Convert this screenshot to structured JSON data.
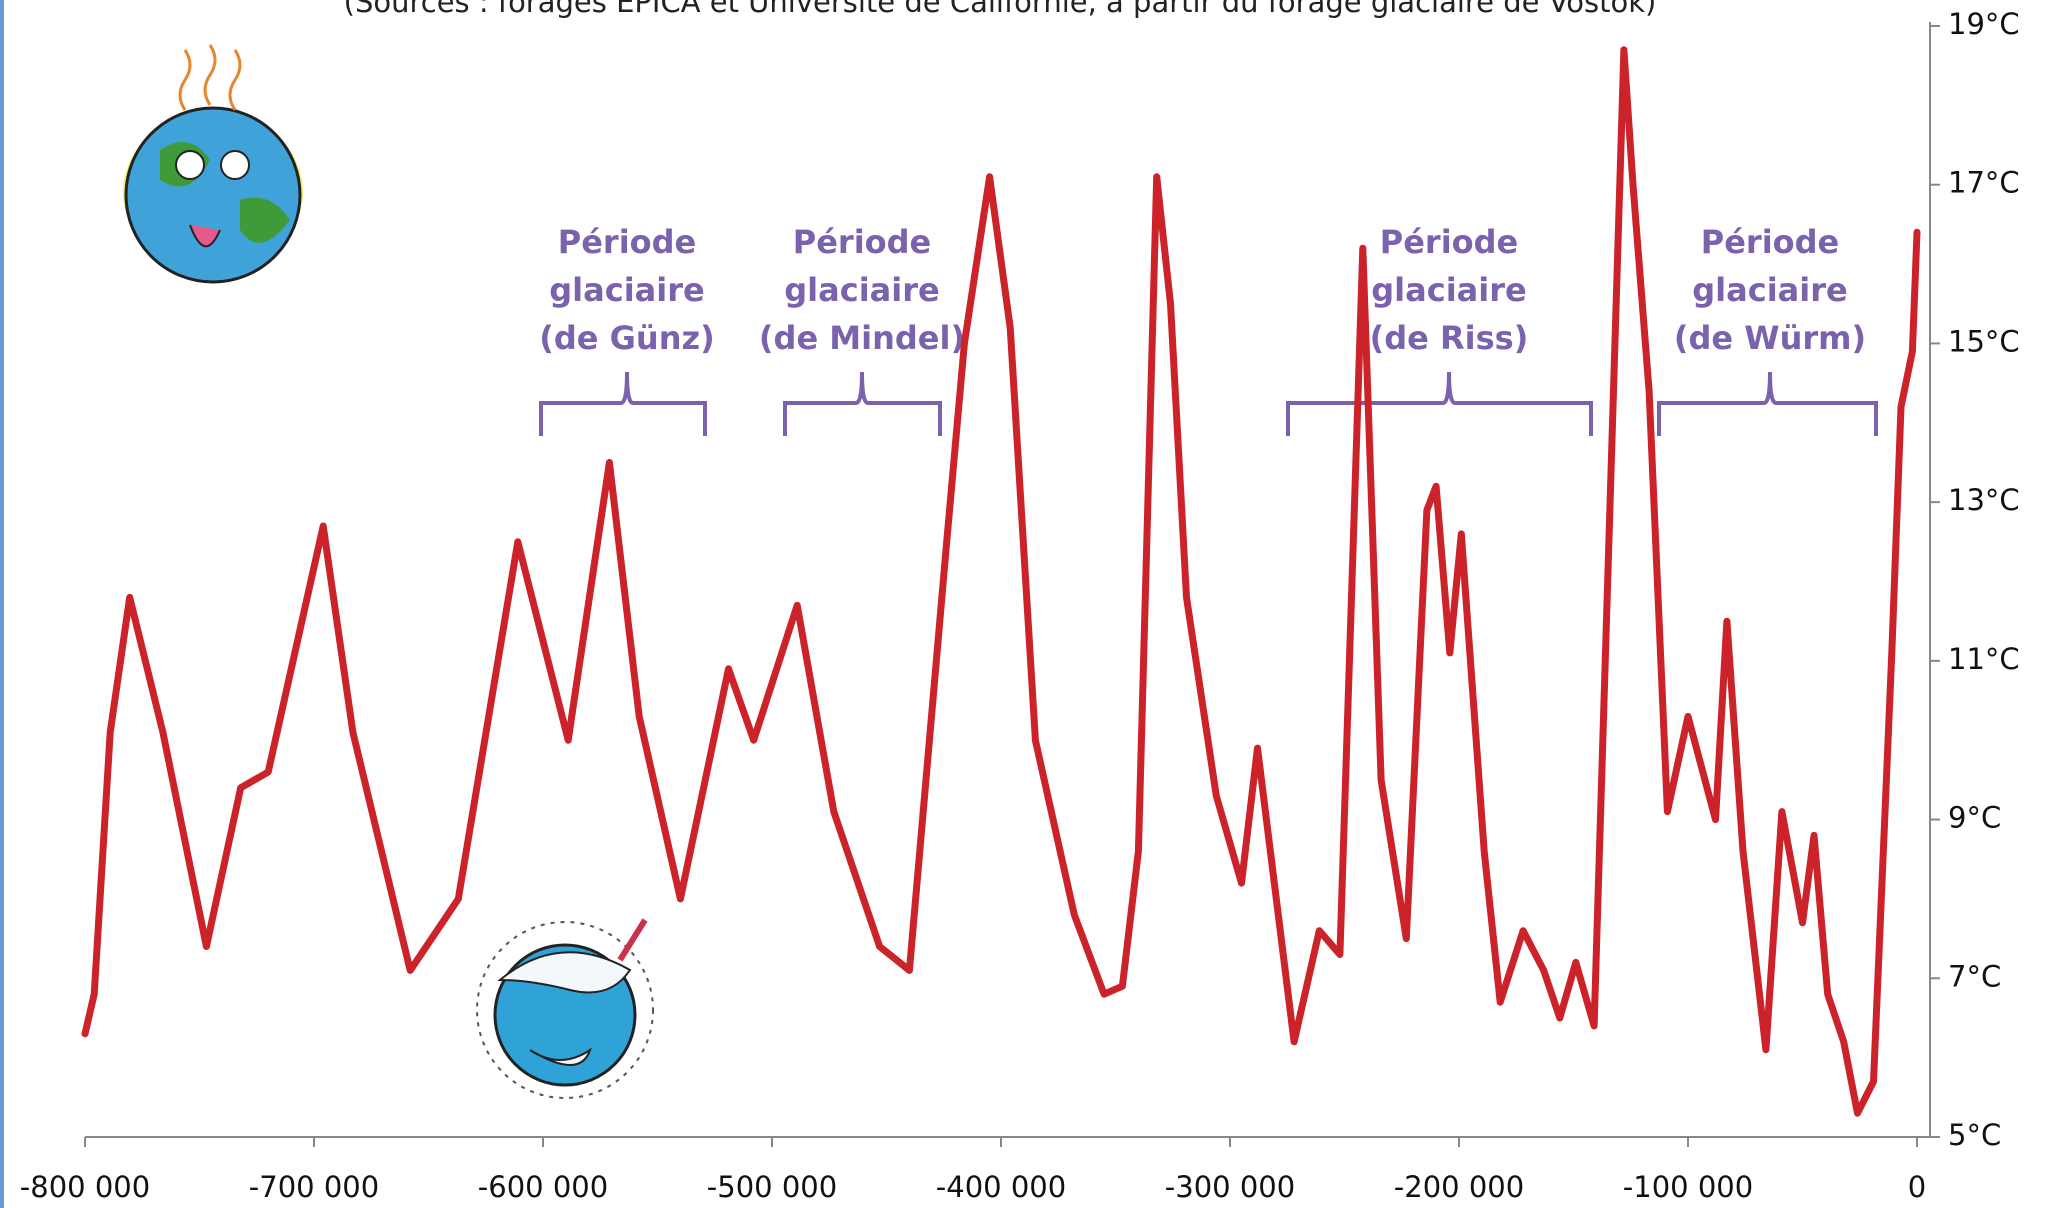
{
  "chart_data": {
    "type": "line",
    "subtitle": "(Sources : forages EPICA et Université de Californie, à partir du forage glaciaire de Vostok)",
    "x": [
      -800000,
      -796000,
      -789000,
      -780500,
      -766000,
      -747000,
      -732000,
      -720000,
      -696000,
      -683000,
      -658000,
      -637000,
      -611000,
      -589000,
      -571000,
      -558000,
      -540000,
      -519000,
      -508000,
      -489000,
      -473000,
      -453000,
      -440000,
      -424000,
      -416000,
      -405000,
      -396000,
      -385000,
      -368000,
      -355000,
      -347000,
      -340000,
      -332000,
      -326000,
      -319000,
      -306000,
      -295000,
      -288000,
      -272000,
      -261000,
      -252000,
      -242000,
      -234000,
      -223000,
      -214000,
      -210000,
      -204000,
      -199000,
      -189000,
      -182000,
      -172000,
      -163000,
      -156000,
      -149000,
      -141000,
      -128000,
      -124000,
      -117000,
      -109000,
      -100000,
      -88000,
      -83000,
      -76000,
      -66000,
      -59000,
      -50000,
      -45000,
      -39000,
      -32000,
      -26000,
      -19000,
      -11000,
      -7000,
      -2000,
      0
    ],
    "series": [
      {
        "color": "#cc2229",
        "values": [
          6.3,
          6.8,
          10.1,
          11.8,
          10.1,
          7.4,
          9.4,
          9.6,
          12.7,
          10.1,
          7.1,
          8.0,
          12.5,
          10.0,
          13.5,
          10.3,
          8.0,
          10.9,
          10.0,
          11.7,
          9.1,
          7.4,
          7.1,
          12.4,
          15.0,
          17.1,
          15.2,
          10.0,
          7.8,
          6.8,
          6.9,
          8.6,
          17.1,
          15.5,
          11.8,
          9.3,
          8.2,
          9.9,
          6.2,
          7.6,
          7.3,
          16.2,
          9.5,
          7.5,
          12.9,
          13.2,
          11.1,
          12.6,
          8.6,
          6.7,
          7.6,
          7.1,
          6.5,
          7.2,
          6.4,
          18.7,
          17.0,
          14.4,
          9.1,
          10.3,
          9.0,
          11.5,
          8.6,
          6.1,
          9.1,
          7.7,
          8.8,
          6.8,
          6.2,
          5.3,
          5.7,
          11.1,
          14.2,
          14.9,
          16.4
        ]
      }
    ],
    "xlim": [
      -800000,
      0
    ],
    "xticks": [
      {
        "value": -800000,
        "label": "-800 000"
      },
      {
        "value": -700000,
        "label": "-700 000"
      },
      {
        "value": -600000,
        "label": "-600 000"
      },
      {
        "value": -500000,
        "label": "-500 000"
      },
      {
        "value": -400000,
        "label": "-400 000"
      },
      {
        "value": -300000,
        "label": "-300 000"
      },
      {
        "value": -200000,
        "label": "-200 000"
      },
      {
        "value": -100000,
        "label": "-100 000"
      },
      0
    ],
    "ylim": [
      5,
      19
    ],
    "yticks": [
      {
        "value": 5,
        "label": "5°C"
      },
      {
        "value": 7,
        "label": "7°C"
      },
      {
        "value": 9,
        "label": "9°C"
      },
      {
        "value": 11,
        "label": "11°C"
      },
      {
        "value": 13,
        "label": "13°C"
      },
      {
        "value": 15,
        "label": "15°C"
      },
      {
        "value": 17,
        "label": "17°C"
      },
      {
        "value": 19,
        "label": "19°C"
      }
    ],
    "annotations": [
      {
        "lines": [
          "Période",
          "glaciaire",
          "(de Günz)"
        ]
      },
      {
        "lines": [
          "Période",
          "glaciaire",
          "(de Mindel)"
        ]
      },
      {
        "lines": [
          "Période",
          "glaciaire",
          "(de Riss)"
        ]
      },
      {
        "lines": [
          "Période",
          "glaciaire",
          "(de Würm)"
        ]
      }
    ]
  }
}
